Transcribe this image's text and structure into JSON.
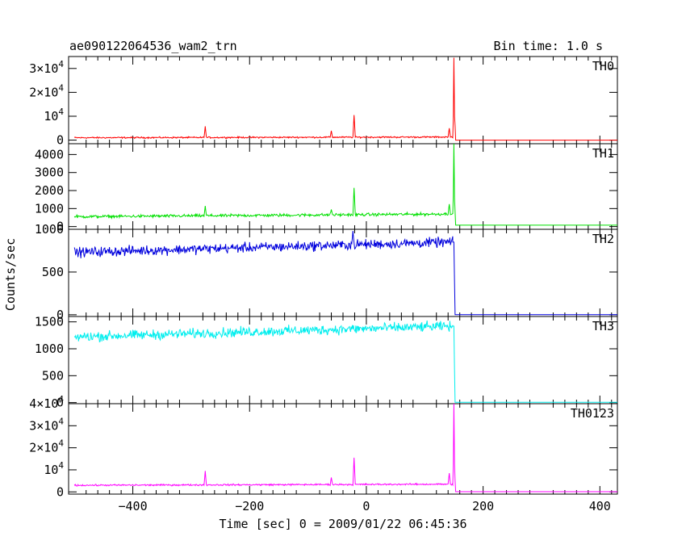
{
  "header": {
    "title": "ae090122064536_wam2_trn",
    "bin_time": "Bin time: 1.0 s"
  },
  "chart_data": {
    "type": "line",
    "xlabel": "Time [sec] 0 = 2009/01/22 06:45:36",
    "ylabel": "Counts/sec",
    "xlim": [
      -510,
      430
    ],
    "x_ticks": [
      -400,
      -200,
      0,
      200,
      400
    ],
    "x_tick_labels": [
      "−400",
      "−200",
      "0",
      "200",
      "400"
    ],
    "panels": [
      {
        "name": "TH0",
        "color": "#ff0000",
        "ylim": [
          -1500,
          35000
        ],
        "yticks": [
          0,
          10000,
          20000,
          30000
        ],
        "ytick_labels": [
          {
            "m": "0",
            "e": ""
          },
          {
            "m": "10",
            "e": "4"
          },
          {
            "m": "2×10",
            "e": "4"
          },
          {
            "m": "3×10",
            "e": "4"
          }
        ],
        "baseline_start": 1000,
        "baseline_end": 1300,
        "noise": 150,
        "post": 0,
        "points": [
          [
            -510,
            1000
          ],
          [
            -430,
            1300
          ],
          [
            -425,
            1000
          ],
          [
            -278,
            1000
          ],
          [
            -276,
            5800
          ],
          [
            -274,
            1100
          ],
          [
            -105,
            1300
          ],
          [
            -62,
            1100
          ],
          [
            -60,
            3900
          ],
          [
            -58,
            1150
          ],
          [
            -23,
            1150
          ],
          [
            -21,
            10500
          ],
          [
            -19,
            1200
          ],
          [
            0,
            1200
          ],
          [
            140,
            1300
          ],
          [
            142,
            5000
          ],
          [
            144,
            1300
          ],
          [
            148,
            1300
          ],
          [
            149,
            9500
          ],
          [
            150,
            34500
          ],
          [
            151,
            10000
          ],
          [
            152,
            6000
          ],
          [
            153,
            0
          ],
          [
            430,
            0
          ]
        ]
      },
      {
        "name": "TH1",
        "color": "#00e000",
        "ylim": [
          -150,
          4600
        ],
        "yticks": [
          0,
          1000,
          2000,
          3000,
          4000
        ],
        "ytick_labels": [
          {
            "m": "0",
            "e": ""
          },
          {
            "m": "1000",
            "e": ""
          },
          {
            "m": "2000",
            "e": ""
          },
          {
            "m": "3000",
            "e": ""
          },
          {
            "m": "4000",
            "e": ""
          }
        ],
        "baseline_start": 550,
        "baseline_end": 700,
        "noise": 40,
        "post": 80,
        "points": [
          [
            -510,
            550
          ],
          [
            -278,
            580
          ],
          [
            -276,
            1150
          ],
          [
            -274,
            590
          ],
          [
            -62,
            650
          ],
          [
            -60,
            950
          ],
          [
            -58,
            660
          ],
          [
            -23,
            660
          ],
          [
            -21,
            2150
          ],
          [
            -19,
            670
          ],
          [
            140,
            700
          ],
          [
            142,
            1250
          ],
          [
            144,
            700
          ],
          [
            148,
            700
          ],
          [
            149,
            1700
          ],
          [
            150,
            4600
          ],
          [
            151,
            1600
          ],
          [
            152,
            800
          ],
          [
            153,
            80
          ],
          [
            430,
            80
          ]
        ]
      },
      {
        "name": "TH2",
        "color": "#0000dd",
        "ylim": [
          -20,
          1000
        ],
        "yticks": [
          0,
          500,
          1000
        ],
        "ytick_labels": [
          {
            "m": "0",
            "e": ""
          },
          {
            "m": "500",
            "e": ""
          },
          {
            "m": "1000",
            "e": ""
          }
        ],
        "baseline_start": 730,
        "baseline_end": 850,
        "noise": 28,
        "post": 2,
        "points": [
          [
            -510,
            730
          ],
          [
            -25,
            830
          ],
          [
            -23,
            980
          ],
          [
            -21,
            830
          ],
          [
            148,
            850
          ],
          [
            150,
            850
          ],
          [
            151,
            380
          ],
          [
            152,
            2
          ],
          [
            430,
            2
          ]
        ]
      },
      {
        "name": "TH3",
        "color": "#00eeee",
        "ylim": [
          -20,
          1600
        ],
        "yticks": [
          0,
          500,
          1000,
          1500
        ],
        "ytick_labels": [
          {
            "m": "0",
            "e": ""
          },
          {
            "m": "500",
            "e": ""
          },
          {
            "m": "1000",
            "e": ""
          },
          {
            "m": "1500",
            "e": ""
          }
        ],
        "baseline_start": 1220,
        "baseline_end": 1420,
        "noise": 45,
        "post": 5,
        "points": [
          [
            -510,
            1220
          ],
          [
            148,
            1420
          ],
          [
            150,
            1420
          ],
          [
            151,
            600
          ],
          [
            152,
            5
          ],
          [
            430,
            5
          ]
        ]
      },
      {
        "name": "TH0123",
        "color": "#ff00ff",
        "ylim": [
          -1000,
          40000
        ],
        "yticks": [
          0,
          10000,
          20000,
          30000,
          40000
        ],
        "ytick_labels": [
          {
            "m": "0",
            "e": ""
          },
          {
            "m": "10",
            "e": "4"
          },
          {
            "m": "2×10",
            "e": "4"
          },
          {
            "m": "3×10",
            "e": "4"
          },
          {
            "m": "4×10",
            "e": "4"
          }
        ],
        "baseline_start": 3000,
        "baseline_end": 3500,
        "noise": 180,
        "post": 100,
        "points": [
          [
            -510,
            3000
          ],
          [
            -278,
            3100
          ],
          [
            -276,
            9500
          ],
          [
            -274,
            3100
          ],
          [
            -62,
            3300
          ],
          [
            -60,
            6500
          ],
          [
            -58,
            3300
          ],
          [
            -23,
            3300
          ],
          [
            -21,
            15500
          ],
          [
            -19,
            3300
          ],
          [
            140,
            3500
          ],
          [
            142,
            8500
          ],
          [
            144,
            3500
          ],
          [
            148,
            3500
          ],
          [
            149,
            12000
          ],
          [
            150,
            40000
          ],
          [
            151,
            12500
          ],
          [
            152,
            5000
          ],
          [
            153,
            100
          ],
          [
            430,
            100
          ]
        ]
      }
    ]
  }
}
